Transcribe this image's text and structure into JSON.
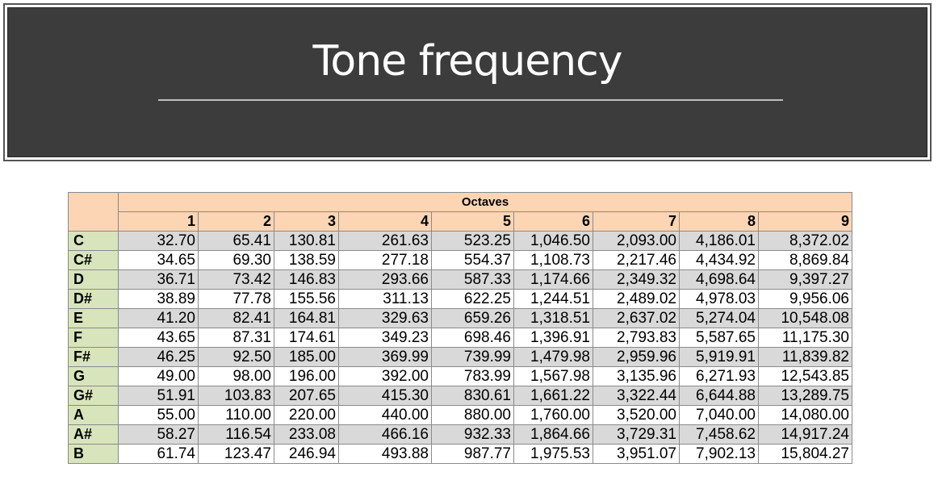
{
  "title": "Tone frequency",
  "table": {
    "group_header": "Octaves",
    "octaves": [
      "1",
      "2",
      "3",
      "4",
      "5",
      "6",
      "7",
      "8",
      "9"
    ],
    "rows": [
      {
        "note": "C",
        "values": [
          "32.70",
          "65.41",
          "130.81",
          "261.63",
          "523.25",
          "1,046.50",
          "2,093.00",
          "4,186.01",
          "8,372.02"
        ]
      },
      {
        "note": "C#",
        "values": [
          "34.65",
          "69.30",
          "138.59",
          "277.18",
          "554.37",
          "1,108.73",
          "2,217.46",
          "4,434.92",
          "8,869.84"
        ]
      },
      {
        "note": "D",
        "values": [
          "36.71",
          "73.42",
          "146.83",
          "293.66",
          "587.33",
          "1,174.66",
          "2,349.32",
          "4,698.64",
          "9,397.27"
        ]
      },
      {
        "note": "D#",
        "values": [
          "38.89",
          "77.78",
          "155.56",
          "311.13",
          "622.25",
          "1,244.51",
          "2,489.02",
          "4,978.03",
          "9,956.06"
        ]
      },
      {
        "note": "E",
        "values": [
          "41.20",
          "82.41",
          "164.81",
          "329.63",
          "659.26",
          "1,318.51",
          "2,637.02",
          "5,274.04",
          "10,548.08"
        ]
      },
      {
        "note": "F",
        "values": [
          "43.65",
          "87.31",
          "174.61",
          "349.23",
          "698.46",
          "1,396.91",
          "2,793.83",
          "5,587.65",
          "11,175.30"
        ]
      },
      {
        "note": "F#",
        "values": [
          "46.25",
          "92.50",
          "185.00",
          "369.99",
          "739.99",
          "1,479.98",
          "2,959.96",
          "5,919.91",
          "11,839.82"
        ]
      },
      {
        "note": "G",
        "values": [
          "49.00",
          "98.00",
          "196.00",
          "392.00",
          "783.99",
          "1,567.98",
          "3,135.96",
          "6,271.93",
          "12,543.85"
        ]
      },
      {
        "note": "G#",
        "values": [
          "51.91",
          "103.83",
          "207.65",
          "415.30",
          "830.61",
          "1,661.22",
          "3,322.44",
          "6,644.88",
          "13,289.75"
        ]
      },
      {
        "note": "A",
        "values": [
          "55.00",
          "110.00",
          "220.00",
          "440.00",
          "880.00",
          "1,760.00",
          "3,520.00",
          "7,040.00",
          "14,080.00"
        ]
      },
      {
        "note": "A#",
        "values": [
          "58.27",
          "116.54",
          "233.08",
          "466.16",
          "932.33",
          "1,864.66",
          "3,729.31",
          "7,458.62",
          "14,917.24"
        ]
      },
      {
        "note": "B",
        "values": [
          "61.74",
          "123.47",
          "246.94",
          "493.88",
          "987.77",
          "1,975.53",
          "3,951.07",
          "7,902.13",
          "15,804.27"
        ]
      }
    ]
  },
  "colors": {
    "banner": "#3c3c3c",
    "header_fill": "#fcd5b4",
    "note_fill": "#d8e4bc",
    "shaded_row": "#d9d9d9"
  }
}
